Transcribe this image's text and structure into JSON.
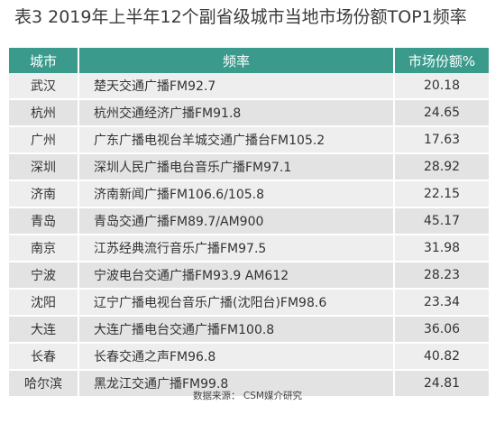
{
  "title": "表3  2019年上半年12个副省级城市当地市场份额TOP1频率",
  "table": {
    "headers": [
      "城市",
      "频率",
      "市场份额%"
    ],
    "rows": [
      {
        "city": "武汉",
        "frequency": "楚天交通广播FM92.7",
        "share": "20.18"
      },
      {
        "city": "杭州",
        "frequency": "杭州交通经济广播FM91.8",
        "share": "24.65"
      },
      {
        "city": "广州",
        "frequency": "广东广播电视台羊城交通广播台FM105.2",
        "share": "17.63"
      },
      {
        "city": "深圳",
        "frequency": "深圳人民广播电台音乐广播FM97.1",
        "share": "28.92"
      },
      {
        "city": "济南",
        "frequency": "济南新闻广播FM106.6/105.8",
        "share": "22.15"
      },
      {
        "city": "青岛",
        "frequency": "青岛交通广播FM89.7/AM900",
        "share": "45.17"
      },
      {
        "city": "南京",
        "frequency": "江苏经典流行音乐广播FM97.5",
        "share": "31.98"
      },
      {
        "city": "宁波",
        "frequency": "宁波电台交通广播FM93.9 AM612",
        "share": "28.23"
      },
      {
        "city": "沈阳",
        "frequency": "辽宁广播电视台音乐广播(沈阳台)FM98.6",
        "share": "23.34"
      },
      {
        "city": "大连",
        "frequency": "大连广播电台交通广播FM100.8",
        "share": "36.06"
      },
      {
        "city": "长春",
        "frequency": "长春交通之声FM96.8",
        "share": "40.82"
      },
      {
        "city": "哈尔滨",
        "frequency": "黑龙江交通广播FM99.8",
        "share": "24.81"
      }
    ]
  },
  "source": "数据来源： CSM媒介研究",
  "colors": {
    "header_bg": "#3a9a8c",
    "row_odd": "#eeeeee",
    "row_even": "#e3e3e3"
  }
}
